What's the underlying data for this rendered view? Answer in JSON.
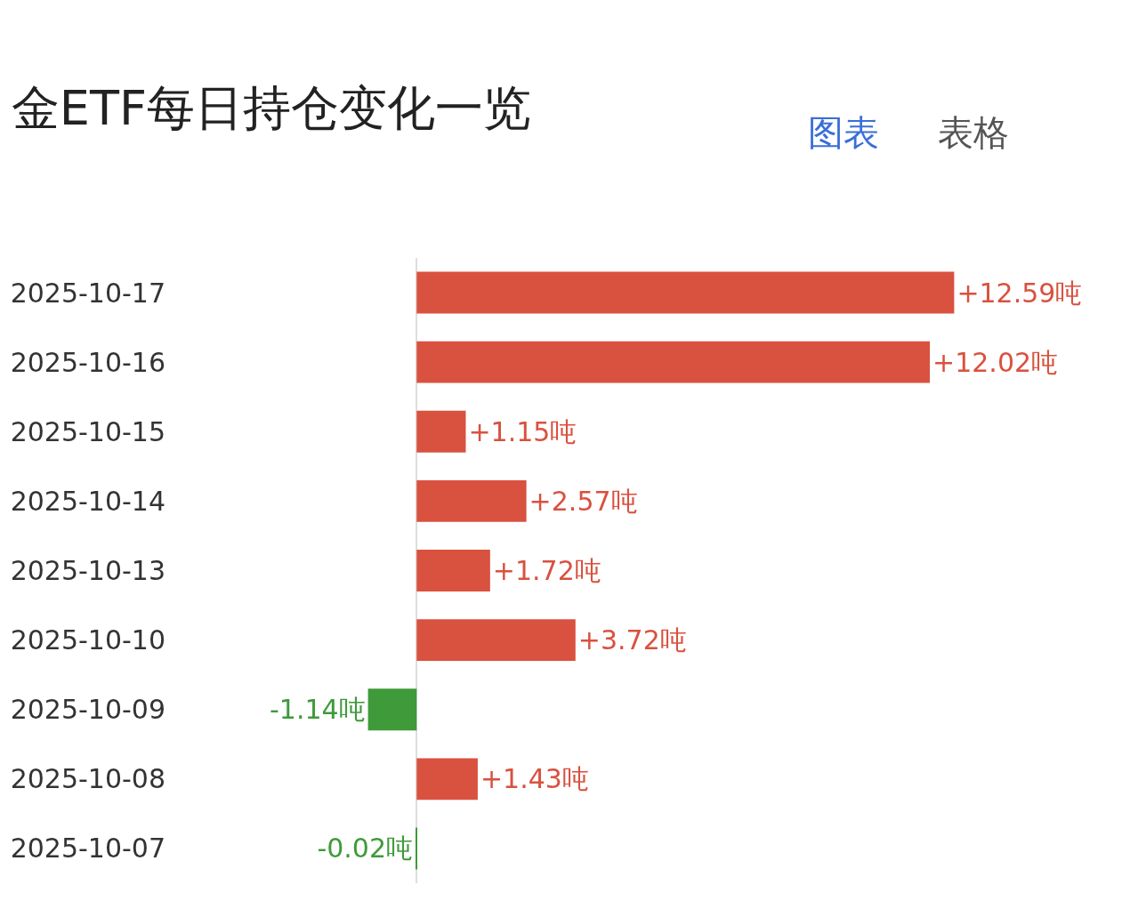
{
  "chart_data": {
    "type": "bar",
    "orientation": "horizontal",
    "title": "金ETF每日持仓变化一览",
    "annotations": [
      "图表",
      "表格"
    ],
    "categories": [
      "2025-10-17",
      "2025-10-16",
      "2025-10-15",
      "2025-10-14",
      "2025-10-13",
      "2025-10-10",
      "2025-10-09",
      "2025-10-08",
      "2025-10-07"
    ],
    "values": [
      12.59,
      12.02,
      1.15,
      2.57,
      1.72,
      3.72,
      -1.14,
      1.43,
      -0.02
    ],
    "value_labels": [
      "+12.59吨",
      "+12.02吨",
      "+1.15吨",
      "+2.57吨",
      "+1.72吨",
      "+3.72吨",
      "-1.14吨",
      "+1.43吨",
      "-0.02吨"
    ],
    "colors": [
      "#d9513f",
      "#d9513f",
      "#d9513f",
      "#d9513f",
      "#d9513f",
      "#d9513f",
      "#3f9a3a",
      "#d9513f",
      "#3f9a3a"
    ],
    "legend": false
  }
}
